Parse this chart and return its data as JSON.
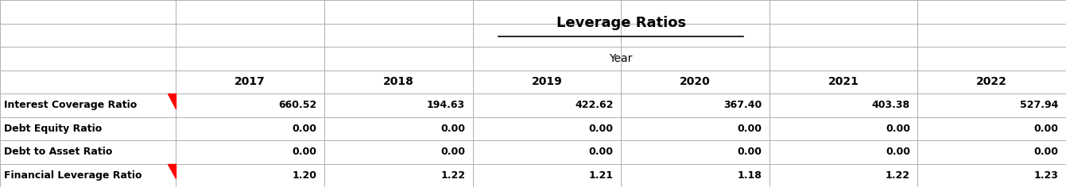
{
  "title": "Leverage Ratios",
  "col_header_label": "Year",
  "years": [
    "2017",
    "2018",
    "2019",
    "2020",
    "2021",
    "2022"
  ],
  "row_labels": [
    "Interest Coverage Ratio",
    "Debt Equity Ratio",
    "Debt to Asset Ratio",
    "Financial Leverage Ratio"
  ],
  "values": [
    [
      660.52,
      194.63,
      422.62,
      367.4,
      403.38,
      527.94
    ],
    [
      0.0,
      0.0,
      0.0,
      0.0,
      0.0,
      0.0
    ],
    [
      0.0,
      0.0,
      0.0,
      0.0,
      0.0,
      0.0
    ],
    [
      1.2,
      1.22,
      1.21,
      1.18,
      1.22,
      1.23
    ]
  ],
  "red_triangle_rows": [
    0,
    3
  ],
  "bg_color": "#ffffff",
  "grid_color": "#b0b0b0",
  "text_color": "#000000",
  "header_fontsize": 10,
  "cell_fontsize": 9,
  "title_fontsize": 13
}
